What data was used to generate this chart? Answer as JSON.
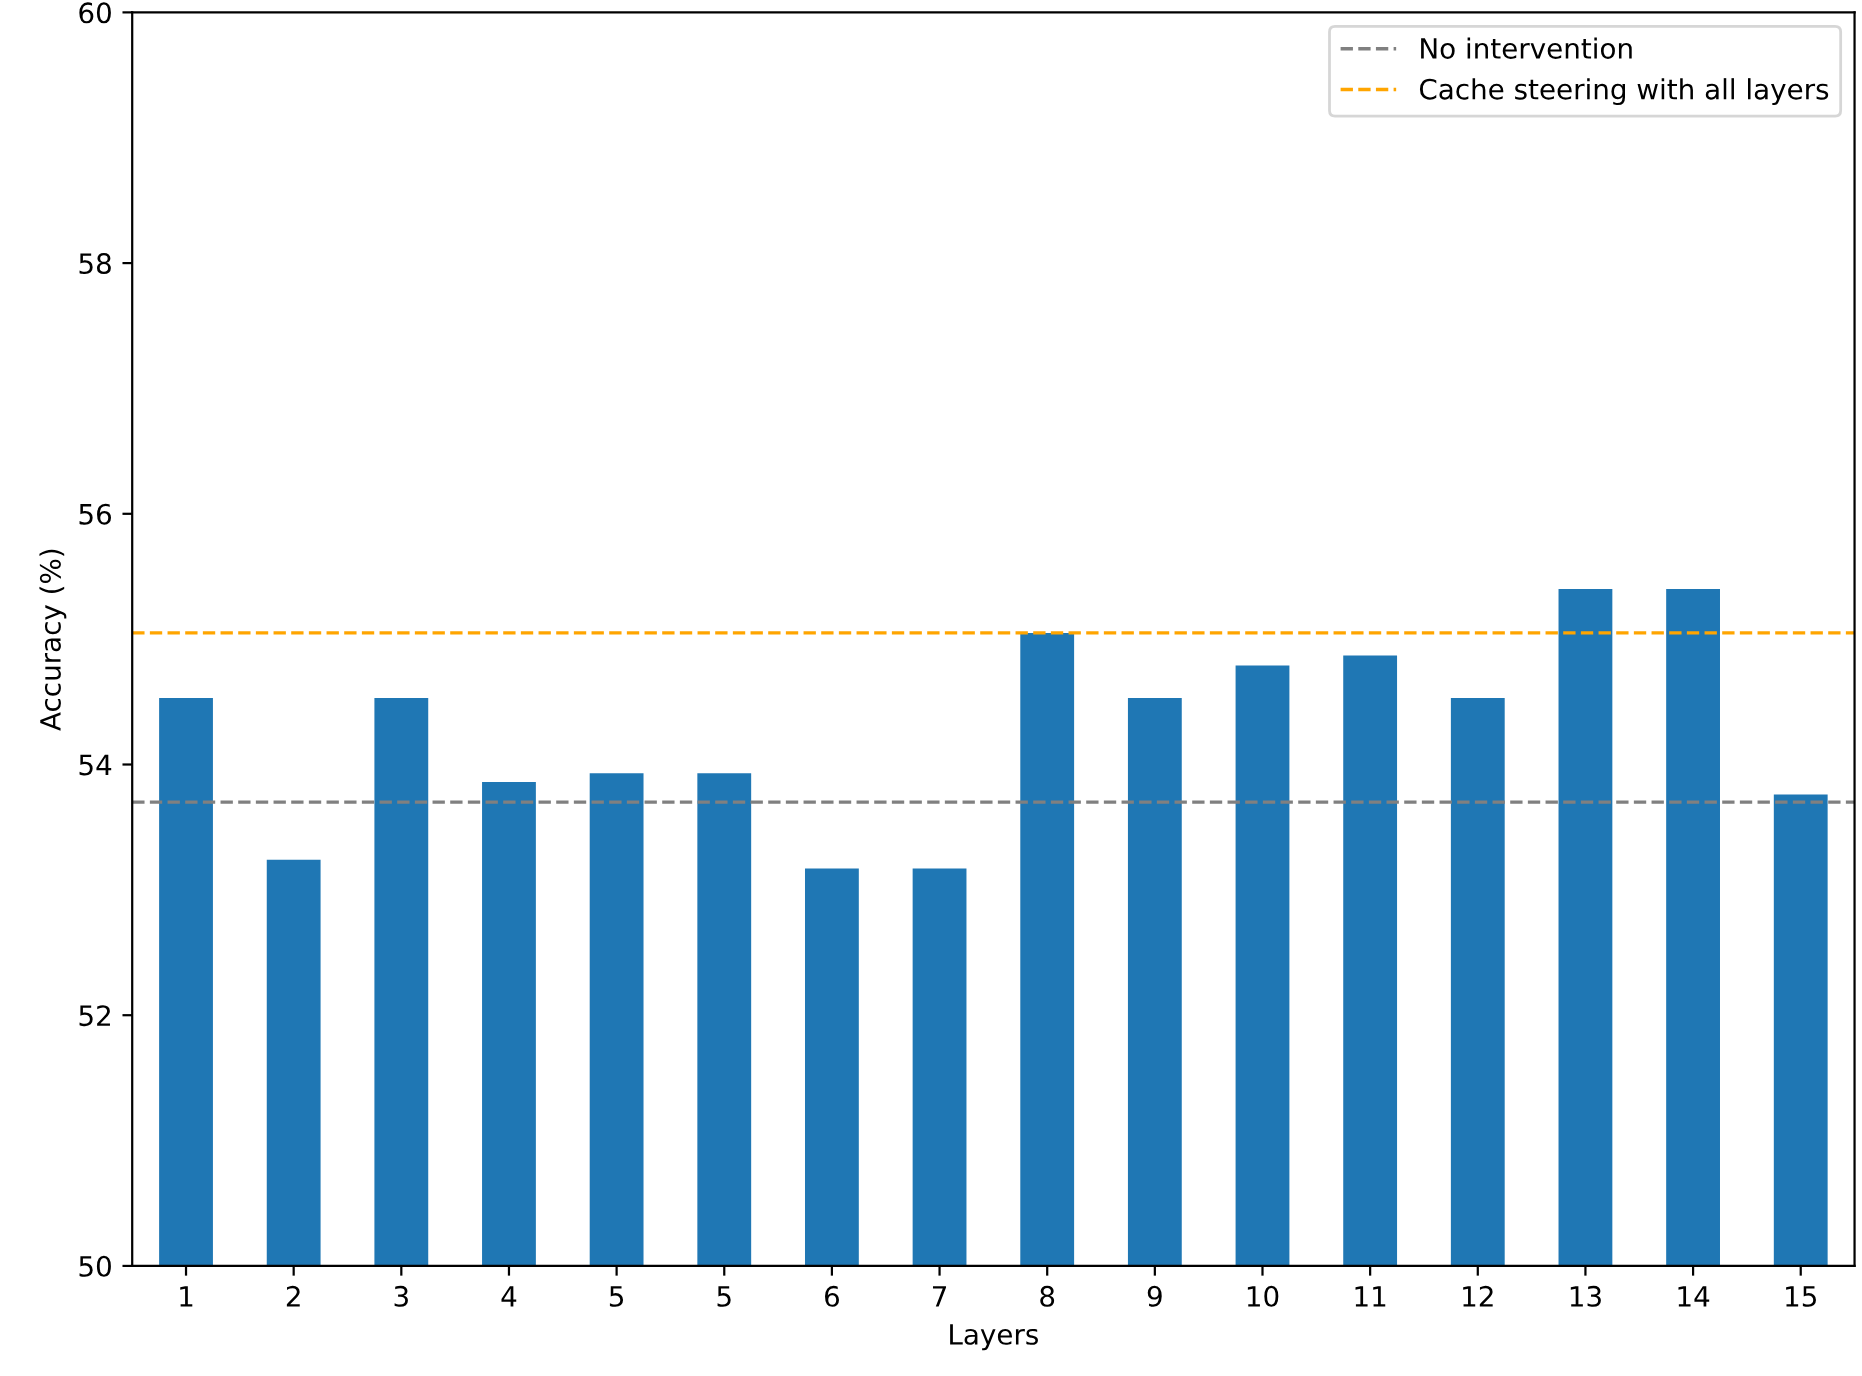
{
  "chart_data": {
    "type": "bar",
    "xlabel": "Layers",
    "ylabel": "Accuracy (%)",
    "categories": [
      "1",
      "2",
      "3",
      "4",
      "5",
      "5",
      "6",
      "7",
      "8",
      "9",
      "10",
      "11",
      "12",
      "13",
      "14",
      "15"
    ],
    "values": [
      54.53,
      53.24,
      54.53,
      53.86,
      53.93,
      53.93,
      53.17,
      53.17,
      55.05,
      54.53,
      54.79,
      54.87,
      54.53,
      55.4,
      55.4,
      53.76
    ],
    "color": "#1f77b4",
    "ylim": [
      50,
      60
    ],
    "yticks": [
      50,
      52,
      54,
      56,
      58,
      60
    ],
    "grid": false,
    "legend": "top right",
    "ref_lines": [
      {
        "axis": "y",
        "value": 53.7,
        "label": "No intervention",
        "color": "#808080",
        "line_style": "dashed"
      },
      {
        "axis": "y",
        "value": 55.05,
        "label": "Cache steering with all layers",
        "color": "#ffa500",
        "line_style": "dashed"
      }
    ]
  }
}
